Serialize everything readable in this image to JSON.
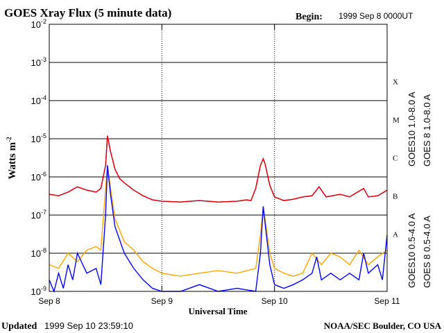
{
  "chart_data": {
    "type": "line",
    "title": "GOES Xray Flux (5 minute data)",
    "begin_label": "Begin:",
    "begin": "1999 Sep 8 0000UT",
    "xlabel": "Universal Time",
    "ylabel": "Watts m",
    "ylabel_exponent": "-2",
    "updated_label": "Updated",
    "updated": "1999 Sep 10 23:59:10",
    "credit": "NOAA/SEC Boulder, CO USA",
    "log_y": true,
    "grid": true,
    "xlim": [
      0,
      72
    ],
    "xticks": [
      {
        "value": 0,
        "label": "Sep 8"
      },
      {
        "value": 24,
        "label": "Sep 9"
      },
      {
        "value": 48,
        "label": "Sep 10"
      },
      {
        "value": 72,
        "label": "Sep 11"
      }
    ],
    "ylim": [
      1e-09,
      0.01
    ],
    "yticks": [
      {
        "value": 1e-09,
        "label": "10",
        "exponent": "-9"
      },
      {
        "value": 1e-08,
        "label": "10",
        "exponent": "-8"
      },
      {
        "value": 1e-07,
        "label": "10",
        "exponent": "-7"
      },
      {
        "value": 1e-06,
        "label": "10",
        "exponent": "-6"
      },
      {
        "value": 1e-05,
        "label": "10",
        "exponent": "-5"
      },
      {
        "value": 0.0001,
        "label": "10",
        "exponent": "-4"
      },
      {
        "value": 0.001,
        "label": "10",
        "exponent": "-3"
      },
      {
        "value": 0.01,
        "label": "10",
        "exponent": "-2"
      }
    ],
    "flare_classes": [
      "A",
      "B",
      "C",
      "M",
      "X"
    ],
    "series": [
      {
        "name": "GOES10 1.0-8.0 A",
        "color": "#8a00c8",
        "x": [
          0,
          2,
          4,
          6,
          8,
          10,
          11,
          12,
          12.4,
          13,
          14,
          15,
          16,
          18,
          20,
          22,
          24,
          28,
          32,
          36,
          40,
          42,
          43,
          44,
          45,
          45.6,
          46,
          47,
          48,
          50,
          52,
          54,
          56,
          57.5,
          59,
          62,
          64,
          67,
          68,
          70,
          72
        ],
        "values": [
          3.5e-07,
          3.2e-07,
          4e-07,
          5.5e-07,
          4.5e-07,
          4e-07,
          5e-07,
          2e-06,
          1.2e-05,
          5e-06,
          1.6e-06,
          9e-07,
          7e-07,
          4.5e-07,
          3.2e-07,
          2.5e-07,
          2.3e-07,
          2.2e-07,
          2.4e-07,
          2.2e-07,
          2.3e-07,
          2.5e-07,
          2.4e-07,
          5e-07,
          2e-06,
          3e-06,
          2.2e-06,
          6e-07,
          3e-07,
          2.4e-07,
          2.6e-07,
          3e-07,
          3.2e-07,
          5.5e-07,
          3e-07,
          3.5e-07,
          3e-07,
          5e-07,
          3e-07,
          3.2e-07,
          4.5e-07
        ]
      },
      {
        "name": "GOES 8 1.0-8.0 A",
        "color": "#e00000",
        "x": [
          0,
          2,
          4,
          6,
          8,
          10,
          11,
          12,
          12.4,
          13,
          14,
          15,
          16,
          18,
          20,
          22,
          24,
          28,
          32,
          36,
          40,
          42,
          43,
          44,
          45,
          45.6,
          46,
          47,
          48,
          50,
          52,
          54,
          56,
          57.5,
          59,
          62,
          64,
          67,
          68,
          70,
          72
        ],
        "values": [
          3.5e-07,
          3.2e-07,
          4e-07,
          5.5e-07,
          4.5e-07,
          4e-07,
          5e-07,
          2e-06,
          1.2e-05,
          5e-06,
          1.6e-06,
          9e-07,
          7e-07,
          4.5e-07,
          3.2e-07,
          2.5e-07,
          2.3e-07,
          2.2e-07,
          2.4e-07,
          2.2e-07,
          2.3e-07,
          2.5e-07,
          2.4e-07,
          5e-07,
          2e-06,
          3e-06,
          2.2e-06,
          6e-07,
          3e-07,
          2.4e-07,
          2.6e-07,
          3e-07,
          3.2e-07,
          5.5e-07,
          3e-07,
          3.5e-07,
          3e-07,
          5e-07,
          3e-07,
          3.2e-07,
          4.5e-07
        ]
      },
      {
        "name": "GOES10 0.5-4.0 A",
        "color": "#ffa500",
        "x": [
          0,
          2,
          4,
          6,
          8,
          10,
          11,
          12,
          12.4,
          13,
          14,
          16,
          18,
          20,
          22,
          24,
          28,
          32,
          36,
          40,
          44,
          45,
          45.6,
          46,
          47,
          48,
          50,
          52,
          54,
          56,
          58,
          60,
          62,
          64,
          66,
          68,
          70,
          72
        ],
        "values": [
          5e-09,
          4e-09,
          1e-08,
          6e-09,
          1.2e-08,
          1.5e-08,
          1.2e-08,
          5e-07,
          2e-06,
          6e-07,
          8e-08,
          2e-08,
          1.2e-08,
          6e-09,
          4e-09,
          3e-09,
          2.5e-09,
          3e-09,
          3.5e-09,
          3e-09,
          4e-09,
          3e-08,
          1.5e-07,
          8e-08,
          1e-08,
          4e-09,
          3e-09,
          2.5e-09,
          3e-09,
          1e-08,
          5e-09,
          1e-08,
          8e-09,
          5e-09,
          1.2e-08,
          5e-09,
          8e-09,
          1.2e-08
        ]
      },
      {
        "name": "GOES 8 0.5-4.0 A",
        "color": "#0000ff",
        "x": [
          0,
          1,
          2,
          3,
          4,
          5,
          6,
          8,
          10,
          11,
          12,
          12.4,
          13,
          14,
          16,
          18,
          20,
          22,
          24,
          28,
          32,
          36,
          40,
          44,
          45,
          45.6,
          46,
          47,
          48,
          50,
          52,
          54,
          56,
          57,
          58,
          60,
          62,
          64,
          66,
          67,
          68,
          70,
          71,
          72
        ],
        "values": [
          2e-09,
          1e-09,
          3e-09,
          1.2e-09,
          5e-09,
          2e-09,
          1e-08,
          3e-09,
          4e-09,
          1.5e-09,
          1e-07,
          2e-06,
          4e-07,
          5e-08,
          1e-08,
          4e-09,
          2e-09,
          1.2e-09,
          1e-09,
          1e-09,
          1.5e-09,
          1e-09,
          1.2e-09,
          1e-09,
          1e-08,
          1.7e-07,
          6e-08,
          5e-09,
          1.5e-09,
          1.2e-09,
          1.5e-09,
          2e-09,
          3e-09,
          8e-09,
          2e-09,
          3e-09,
          2e-09,
          3e-09,
          2e-09,
          1e-08,
          3e-09,
          5e-09,
          2e-09,
          3e-08
        ]
      }
    ]
  }
}
